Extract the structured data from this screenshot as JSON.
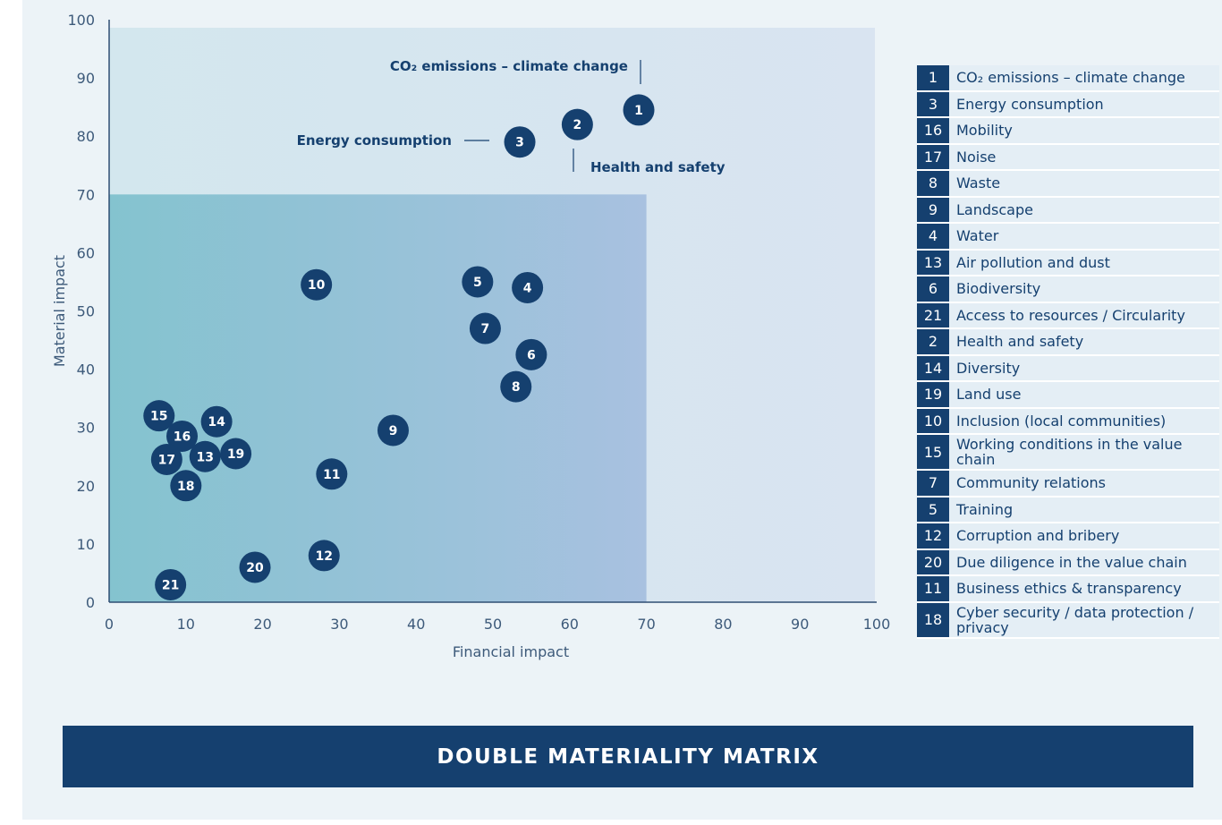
{
  "chart_data": {
    "type": "scatter",
    "title": "DOUBLE MATERIALITY MATRIX",
    "xlabel": "Financial impact",
    "ylabel": "Material impact",
    "xlim": [
      0,
      100
    ],
    "ylim": [
      0,
      100
    ],
    "x_ticks": [
      "0",
      "10",
      "20",
      "30",
      "40",
      "50",
      "60",
      "70",
      "80",
      "90",
      "100"
    ],
    "y_ticks": [
      "0",
      "10",
      "20",
      "30",
      "40",
      "50",
      "60",
      "70",
      "80",
      "90",
      "100"
    ],
    "threshold": {
      "x": 70,
      "y": 70
    },
    "points": [
      {
        "id": "1",
        "x": 69,
        "y": 84.5
      },
      {
        "id": "2",
        "x": 61,
        "y": 82
      },
      {
        "id": "3",
        "x": 53.5,
        "y": 79
      },
      {
        "id": "4",
        "x": 54.5,
        "y": 54
      },
      {
        "id": "5",
        "x": 48,
        "y": 55
      },
      {
        "id": "6",
        "x": 55,
        "y": 42.5
      },
      {
        "id": "7",
        "x": 49,
        "y": 47
      },
      {
        "id": "8",
        "x": 53,
        "y": 37
      },
      {
        "id": "9",
        "x": 37,
        "y": 29.5
      },
      {
        "id": "10",
        "x": 27,
        "y": 54.5
      },
      {
        "id": "11",
        "x": 29,
        "y": 22
      },
      {
        "id": "12",
        "x": 28,
        "y": 8
      },
      {
        "id": "13",
        "x": 12.5,
        "y": 25
      },
      {
        "id": "14",
        "x": 14,
        "y": 31
      },
      {
        "id": "15",
        "x": 6.5,
        "y": 32
      },
      {
        "id": "16",
        "x": 9.5,
        "y": 28.5
      },
      {
        "id": "17",
        "x": 7.5,
        "y": 24.5
      },
      {
        "id": "18",
        "x": 10,
        "y": 20
      },
      {
        "id": "19",
        "x": 16.5,
        "y": 25.5
      },
      {
        "id": "20",
        "x": 19,
        "y": 6
      },
      {
        "id": "21",
        "x": 8,
        "y": 3
      }
    ],
    "annotations": [
      {
        "point": "1",
        "text": "CO₂ emissions – climate change"
      },
      {
        "point": "3",
        "text": "Energy consumption"
      },
      {
        "point": "2",
        "text": "Health and safety"
      }
    ],
    "legend": [
      {
        "id": "1",
        "label": "CO₂ emissions – climate change"
      },
      {
        "id": "3",
        "label": "Energy consumption"
      },
      {
        "id": "16",
        "label": "Mobility"
      },
      {
        "id": "17",
        "label": "Noise"
      },
      {
        "id": "8",
        "label": "Waste"
      },
      {
        "id": "9",
        "label": "Landscape"
      },
      {
        "id": "4",
        "label": "Water"
      },
      {
        "id": "13",
        "label": "Air pollution and dust"
      },
      {
        "id": "6",
        "label": "Biodiversity"
      },
      {
        "id": "21",
        "label": "Access to resources / Circularity"
      },
      {
        "id": "2",
        "label": "Health and safety"
      },
      {
        "id": "14",
        "label": "Diversity"
      },
      {
        "id": "19",
        "label": "Land use"
      },
      {
        "id": "10",
        "label": "Inclusion (local communities)"
      },
      {
        "id": "15",
        "label": "Working conditions in the value chain"
      },
      {
        "id": "7",
        "label": "Community relations"
      },
      {
        "id": "5",
        "label": "Training"
      },
      {
        "id": "12",
        "label": "Corruption and bribery"
      },
      {
        "id": "20",
        "label": "Due diligence in the value chain"
      },
      {
        "id": "11",
        "label": "Business ethics & transparency"
      },
      {
        "id": "18",
        "label": "Cyber security / data protection / privacy"
      }
    ],
    "grid": false,
    "legend_position": "right"
  },
  "colors": {
    "marker": "#15406f",
    "outer_zone": "#d6e6ef",
    "inner_zone_left": "#86c3cf",
    "inner_zone_right": "#a7c2e0",
    "banner": "#15406f"
  }
}
